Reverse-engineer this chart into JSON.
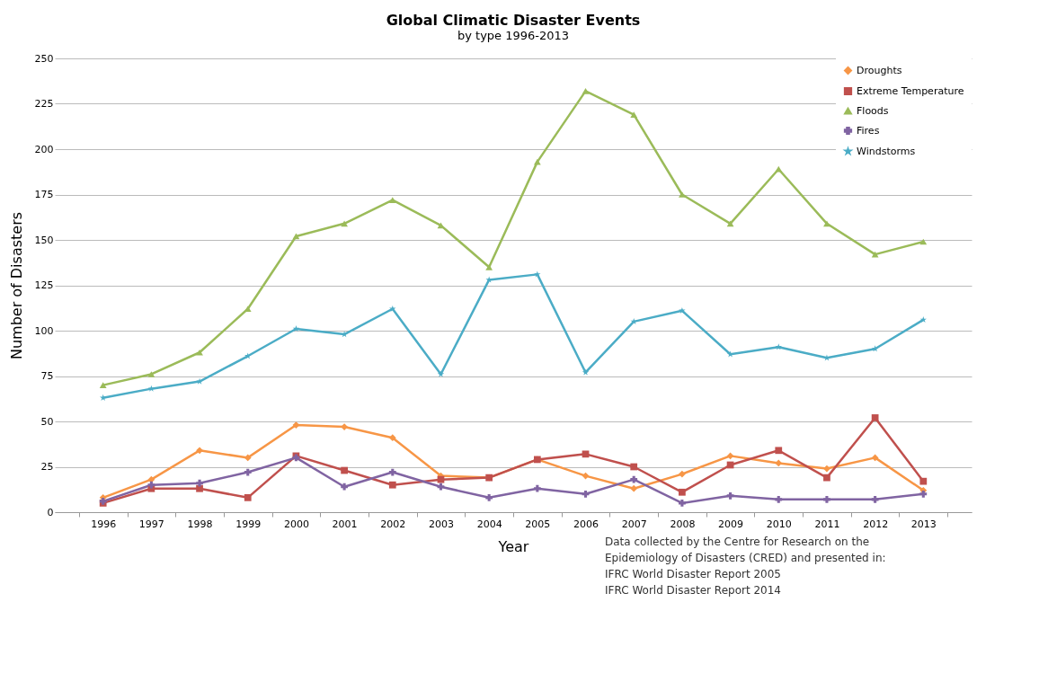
{
  "chart_data": {
    "type": "line",
    "title": "Global Climatic Disaster Events",
    "subtitle": "by type 1996-2013",
    "xlabel": "Year",
    "ylabel": "Number of Disasters",
    "categories": [
      "1996",
      "1997",
      "1998",
      "1999",
      "2000",
      "2001",
      "2002",
      "2003",
      "2004",
      "2005",
      "2006",
      "2007",
      "2008",
      "2009",
      "2010",
      "2011",
      "2012",
      "2013"
    ],
    "series": [
      {
        "name": "Droughts",
        "color": "#f79646",
        "marker": "diamond",
        "values": [
          8,
          18,
          34,
          30,
          48,
          47,
          41,
          20,
          19,
          29,
          20,
          13,
          21,
          31,
          27,
          24,
          30,
          12
        ]
      },
      {
        "name": "Extreme Temperature",
        "color": "#c0504d",
        "marker": "square",
        "values": [
          5,
          13,
          13,
          8,
          31,
          23,
          15,
          18,
          19,
          29,
          32,
          25,
          11,
          26,
          34,
          19,
          52,
          17
        ]
      },
      {
        "name": "Floods",
        "color": "#9bbb59",
        "marker": "triangle",
        "values": [
          70,
          76,
          88,
          112,
          152,
          159,
          172,
          158,
          135,
          193,
          232,
          219,
          175,
          159,
          189,
          159,
          142,
          149
        ]
      },
      {
        "name": "Fires",
        "color": "#8064a2",
        "marker": "cross",
        "values": [
          6,
          15,
          16,
          22,
          30,
          14,
          22,
          14,
          8,
          13,
          10,
          18,
          5,
          9,
          7,
          7,
          7,
          10
        ]
      },
      {
        "name": "Windstorms",
        "color": "#4bacc6",
        "marker": "star",
        "values": [
          63,
          68,
          72,
          86,
          101,
          98,
          112,
          76,
          128,
          131,
          77,
          105,
          111,
          87,
          91,
          85,
          90,
          106
        ]
      }
    ],
    "ylim": [
      0,
      250
    ],
    "yticks": [
      0,
      25,
      50,
      75,
      100,
      125,
      150,
      175,
      200,
      225,
      250
    ],
    "grid": "y",
    "legend": "top right",
    "line_style": "solid",
    "annotations": [
      "Data collected by the Centre for Research on the",
      "Epidemiology of Disasters (CRED) and presented in:",
      "IFRC World Disaster Report 2005",
      "IFRC World Disaster Report 2014"
    ]
  }
}
